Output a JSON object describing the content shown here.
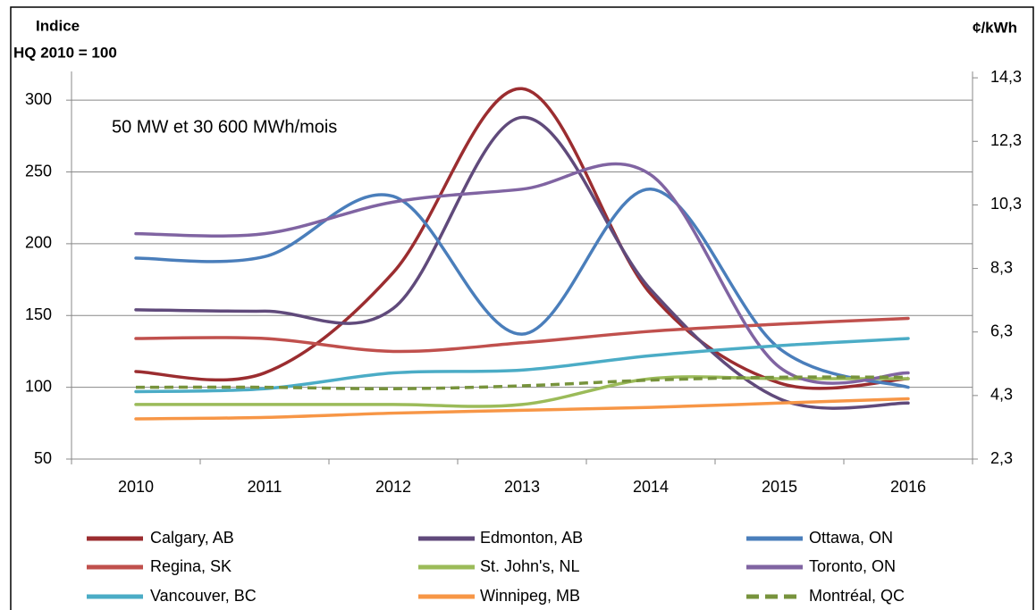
{
  "chart_data": {
    "type": "line",
    "annotation": "50 MW et 30 600 MWh/mois",
    "ylabel": [
      "Indice",
      "HQ 2010 = 100"
    ],
    "y2label": "¢/kWh",
    "categories": [
      "2010",
      "2011",
      "2012",
      "2013",
      "2014",
      "2015",
      "2016"
    ],
    "ylim": [
      50,
      320
    ],
    "yticks": [
      50,
      100,
      150,
      200,
      250,
      300
    ],
    "y2lim": [
      2.3,
      14.5
    ],
    "y2ticks": [
      {
        "value": 2.3,
        "label": "2,3"
      },
      {
        "value": 4.3,
        "label": "4,3"
      },
      {
        "value": 6.3,
        "label": "6,3"
      },
      {
        "value": 8.3,
        "label": "8,3"
      },
      {
        "value": 10.3,
        "label": "10,3"
      },
      {
        "value": 12.3,
        "label": "12,3"
      },
      {
        "value": 14.3,
        "label": "14,3"
      }
    ],
    "grid": true,
    "series": [
      {
        "name": "Calgary, AB",
        "color": "#9b2d30",
        "values": [
          111,
          110,
          180,
          308,
          165,
          103,
          106
        ]
      },
      {
        "name": "Edmonton, AB",
        "color": "#604a7b",
        "values": [
          154,
          153,
          155,
          288,
          168,
          92,
          89
        ]
      },
      {
        "name": "Ottawa, ON",
        "color": "#4a7ebb",
        "values": [
          190,
          191,
          233,
          137,
          238,
          127,
          100
        ]
      },
      {
        "name": "Regina, SK",
        "color": "#c0504d",
        "values": [
          134,
          134,
          125,
          131,
          139,
          144,
          148
        ]
      },
      {
        "name": "St. John's, NL",
        "color": "#9bbb59",
        "values": [
          88,
          88,
          88,
          88,
          106,
          106,
          106
        ]
      },
      {
        "name": "Toronto, ON",
        "color": "#8064a2",
        "values": [
          207,
          207,
          229,
          238,
          248,
          114,
          110
        ]
      },
      {
        "name": "Vancouver, BC",
        "color": "#4bacc6",
        "values": [
          97,
          99,
          110,
          112,
          122,
          129,
          134
        ]
      },
      {
        "name": "Winnipeg, MB",
        "color": "#f79646",
        "values": [
          78,
          79,
          82,
          84,
          86,
          89,
          92
        ]
      },
      {
        "name": "Montréal, QC",
        "color": "#77933c",
        "dashed": true,
        "values": [
          100,
          100,
          99,
          101,
          105,
          107,
          107
        ]
      }
    ]
  }
}
